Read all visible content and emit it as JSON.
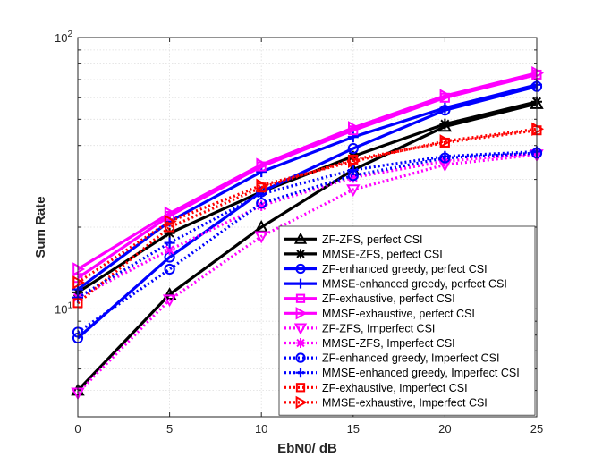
{
  "chart_data": {
    "type": "line",
    "y_scale": "log",
    "xlabel": "EbN0/ dB",
    "ylabel": "Sum Rate",
    "xlim": [
      0,
      25
    ],
    "ylim": [
      4,
      100
    ],
    "x_ticks": [
      0,
      5,
      10,
      15,
      20,
      25
    ],
    "x_tick_labels": [
      "0",
      "5",
      "10",
      "15",
      "20",
      "25"
    ],
    "y_ticks": [
      {
        "value": 10,
        "base": "10",
        "exp": "1"
      },
      {
        "value": 100,
        "base": "10",
        "exp": "2"
      }
    ],
    "grid": true,
    "legend_position": "lower-right",
    "x": [
      0,
      5,
      10,
      15,
      20,
      25
    ],
    "series": [
      {
        "name": "ZF-ZFS, perfect CSI",
        "color": "#000000",
        "dash": "solid",
        "marker": "triangle-up",
        "values": [
          5.0,
          11.3,
          20.0,
          32.5,
          47.0,
          57.0
        ]
      },
      {
        "name": "MMSE-ZFS, perfect CSI",
        "color": "#000000",
        "dash": "solid",
        "marker": "asterisk",
        "values": [
          11.5,
          19.0,
          27.0,
          36.5,
          48.0,
          58.0
        ]
      },
      {
        "name": "ZF-enhanced greedy, perfect CSI",
        "color": "#0000ff",
        "dash": "solid",
        "marker": "circle",
        "values": [
          7.8,
          15.5,
          27.0,
          39.0,
          54.0,
          66.0
        ]
      },
      {
        "name": "MMSE-enhanced greedy, perfect CSI",
        "color": "#0000ff",
        "dash": "solid",
        "marker": "plus",
        "values": [
          11.8,
          21.0,
          32.0,
          43.0,
          55.0,
          67.0
        ]
      },
      {
        "name": "ZF-exhaustive, perfect CSI",
        "color": "#ff00ff",
        "dash": "solid",
        "marker": "square",
        "values": [
          13.0,
          22.0,
          33.5,
          45.5,
          60.0,
          73.0
        ]
      },
      {
        "name": "MMSE-exhaustive, perfect CSI",
        "color": "#ff00ff",
        "dash": "solid",
        "marker": "triangle-right",
        "values": [
          14.0,
          22.5,
          34.0,
          46.5,
          61.0,
          74.0
        ]
      },
      {
        "name": "ZF-ZFS, Imperfect CSI",
        "color": "#ff00ff",
        "dash": "dotted",
        "marker": "triangle-down",
        "values": [
          4.9,
          10.8,
          18.5,
          27.5,
          34.0,
          37.0
        ]
      },
      {
        "name": "MMSE-ZFS, Imperfect CSI",
        "color": "#ff00ff",
        "dash": "dotted",
        "marker": "asterisk",
        "values": [
          11.0,
          16.5,
          24.0,
          30.5,
          35.0,
          37.5
        ]
      },
      {
        "name": "ZF-enhanced greedy, Imperfect CSI",
        "color": "#0000ff",
        "dash": "dotted",
        "marker": "circle",
        "values": [
          8.2,
          14.0,
          24.5,
          31.0,
          36.0,
          37.5
        ]
      },
      {
        "name": "MMSE-enhanced greedy, Imperfect CSI",
        "color": "#0000ff",
        "dash": "dotted",
        "marker": "plus",
        "values": [
          11.0,
          17.5,
          26.5,
          32.5,
          36.5,
          38.0
        ]
      },
      {
        "name": "ZF-exhaustive, Imperfect CSI",
        "color": "#ff0000",
        "dash": "dotted",
        "marker": "square",
        "values": [
          10.5,
          20.0,
          28.0,
          35.5,
          41.0,
          45.5
        ]
      },
      {
        "name": "MMSE-exhaustive, Imperfect CSI",
        "color": "#ff0000",
        "dash": "dotted",
        "marker": "triangle-right",
        "values": [
          12.5,
          21.0,
          28.5,
          35.0,
          41.5,
          46.0
        ]
      }
    ]
  }
}
